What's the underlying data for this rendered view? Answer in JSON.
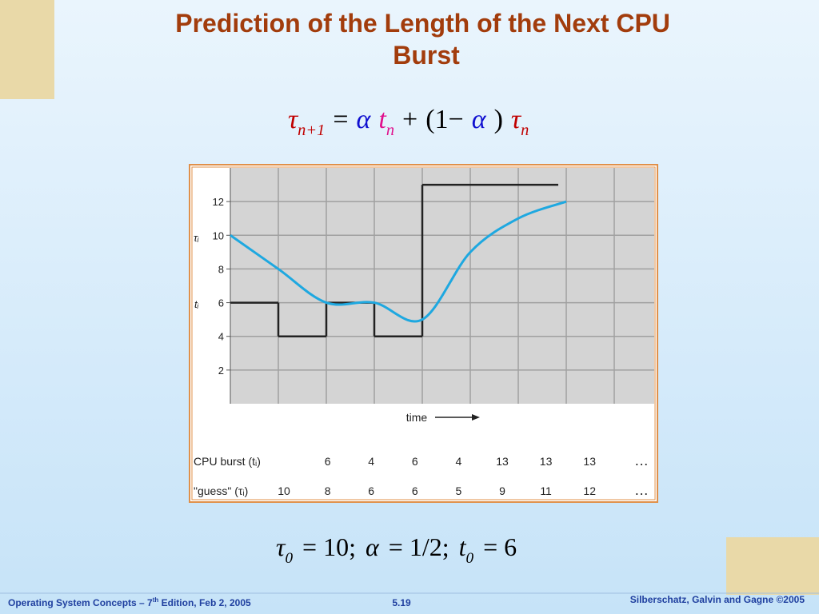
{
  "title": "Prediction of the Length of the Next CPU Burst",
  "formula": [
    {
      "text": "τ",
      "sub": "n+1",
      "color": "#c00000"
    },
    {
      "text": "="
    },
    {
      "text": "α",
      "color": "#1010d0"
    },
    {
      "text": "t",
      "sub": "n",
      "color": "#e0108c"
    },
    {
      "text": "+"
    },
    {
      "text": "(1−"
    },
    {
      "text": "α",
      "color": "#1010d0"
    },
    {
      "text": ")"
    },
    {
      "text": "τ",
      "sub": "n",
      "color": "#c00000"
    }
  ],
  "chart_data": {
    "type": "step-and-curve",
    "x_label": "time",
    "y_labels": [
      "τᵢ",
      "tᵢ"
    ],
    "ylim": [
      0,
      14
    ],
    "yticks": [
      2,
      4,
      6,
      8,
      10,
      12
    ],
    "grid": true,
    "series": [
      {
        "name": "CPU burst (tᵢ)",
        "color": "#222222",
        "values": [
          6,
          4,
          6,
          4,
          13,
          13,
          13,
          null
        ]
      },
      {
        "name": "\"guess\" (τᵢ)",
        "color": "#1ea8e0",
        "values": [
          10,
          8,
          6,
          6,
          5,
          9,
          11,
          12
        ]
      }
    ],
    "continuation": "…"
  },
  "parameters": [
    {
      "text": "τ",
      "sub": "0"
    },
    {
      "text": "= 10;"
    },
    {
      "text": "α"
    },
    {
      "text": "= 1/2;"
    },
    {
      "text": "t",
      "sub": "0"
    },
    {
      "text": "= 6"
    }
  ],
  "footer": {
    "left": [
      "Operating System Concepts – 7",
      "th",
      " Edition, Feb 2, 2005"
    ],
    "page": "5.19",
    "right": "Silberschatz, Galvin and Gagne ©2005"
  }
}
